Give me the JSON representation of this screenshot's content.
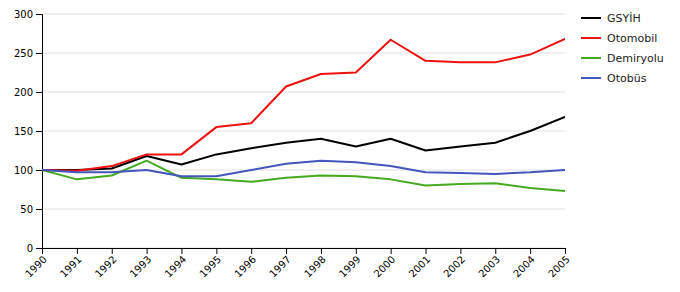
{
  "chart_data": {
    "type": "line",
    "x": [
      1990,
      1991,
      1992,
      1993,
      1994,
      1995,
      1996,
      1997,
      1998,
      1999,
      2000,
      2001,
      2002,
      2003,
      2004,
      2005
    ],
    "series": [
      {
        "name": "GSYİH",
        "color": "#000000",
        "values": [
          100,
          100,
          102,
          118,
          107,
          120,
          128,
          135,
          140,
          130,
          140,
          125,
          130,
          135,
          150,
          168
        ]
      },
      {
        "name": "Otomobil",
        "color": "#ee1111",
        "values": [
          100,
          99,
          105,
          120,
          120,
          155,
          160,
          207,
          223,
          225,
          267,
          240,
          238,
          238,
          248,
          268
        ]
      },
      {
        "name": "Demiryolu",
        "color": "#44aa22",
        "values": [
          100,
          88,
          93,
          112,
          90,
          88,
          85,
          90,
          93,
          92,
          88,
          80,
          82,
          83,
          77,
          73
        ]
      },
      {
        "name": "Otobüs",
        "color": "#4455bb",
        "values": [
          100,
          97,
          97,
          100,
          92,
          92,
          100,
          108,
          112,
          110,
          105,
          97,
          96,
          95,
          97,
          100
        ]
      }
    ],
    "xlim": [
      1990,
      2005
    ],
    "xticks": [
      1990,
      1991,
      1992,
      1993,
      1994,
      1995,
      1996,
      1997,
      1998,
      1999,
      2000,
      2001,
      2002,
      2003,
      2004,
      2005
    ],
    "ylim": [
      0,
      300
    ],
    "yticks": [
      0,
      50,
      100,
      150,
      200,
      250,
      300
    ],
    "grid": true,
    "legend": "right"
  }
}
